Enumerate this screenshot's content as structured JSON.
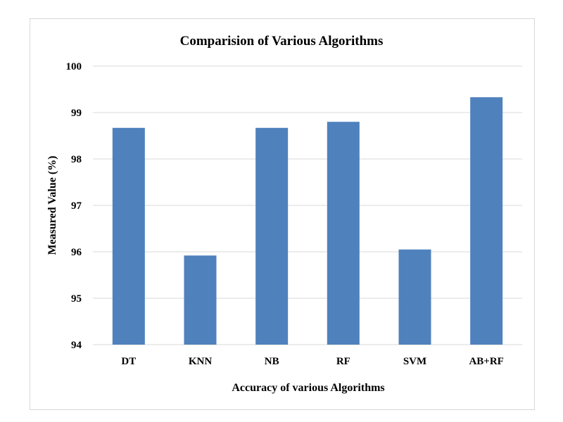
{
  "chart_data": {
    "type": "bar",
    "title": "Comparision of Various Algorithms",
    "xlabel": "Accuracy of various Algorithms",
    "ylabel": "Measured Value (%)",
    "categories": [
      "DT",
      "KNN",
      "NB",
      "RF",
      "SVM",
      "AB+RF"
    ],
    "values": [
      98.67,
      95.92,
      98.67,
      98.8,
      96.05,
      99.33
    ],
    "ylim": [
      94,
      100
    ],
    "yticks": [
      "94",
      "95",
      "96",
      "97",
      "98",
      "99",
      "100"
    ],
    "grid": true,
    "legend": "none",
    "colors": {
      "bar": "#4f81bd",
      "grid": "#d9d9d9"
    }
  }
}
